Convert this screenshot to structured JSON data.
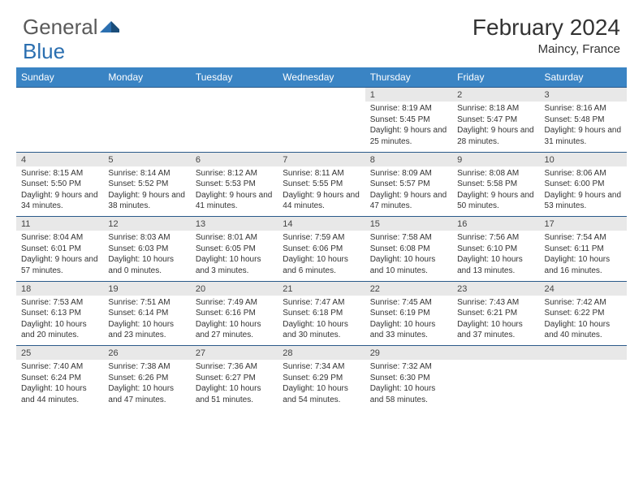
{
  "logo": {
    "text1": "General",
    "text2": "Blue"
  },
  "title": "February 2024",
  "location": "Maincy, France",
  "header_bg": "#3a84c4",
  "border_color": "#2b5a8a",
  "daynum_bg": "#e8e8e8",
  "days": [
    "Sunday",
    "Monday",
    "Tuesday",
    "Wednesday",
    "Thursday",
    "Friday",
    "Saturday"
  ],
  "weeks": [
    [
      null,
      null,
      null,
      null,
      {
        "n": "1",
        "sr": "8:19 AM",
        "ss": "5:45 PM",
        "dl": "9 hours and 25 minutes."
      },
      {
        "n": "2",
        "sr": "8:18 AM",
        "ss": "5:47 PM",
        "dl": "9 hours and 28 minutes."
      },
      {
        "n": "3",
        "sr": "8:16 AM",
        "ss": "5:48 PM",
        "dl": "9 hours and 31 minutes."
      }
    ],
    [
      {
        "n": "4",
        "sr": "8:15 AM",
        "ss": "5:50 PM",
        "dl": "9 hours and 34 minutes."
      },
      {
        "n": "5",
        "sr": "8:14 AM",
        "ss": "5:52 PM",
        "dl": "9 hours and 38 minutes."
      },
      {
        "n": "6",
        "sr": "8:12 AM",
        "ss": "5:53 PM",
        "dl": "9 hours and 41 minutes."
      },
      {
        "n": "7",
        "sr": "8:11 AM",
        "ss": "5:55 PM",
        "dl": "9 hours and 44 minutes."
      },
      {
        "n": "8",
        "sr": "8:09 AM",
        "ss": "5:57 PM",
        "dl": "9 hours and 47 minutes."
      },
      {
        "n": "9",
        "sr": "8:08 AM",
        "ss": "5:58 PM",
        "dl": "9 hours and 50 minutes."
      },
      {
        "n": "10",
        "sr": "8:06 AM",
        "ss": "6:00 PM",
        "dl": "9 hours and 53 minutes."
      }
    ],
    [
      {
        "n": "11",
        "sr": "8:04 AM",
        "ss": "6:01 PM",
        "dl": "9 hours and 57 minutes."
      },
      {
        "n": "12",
        "sr": "8:03 AM",
        "ss": "6:03 PM",
        "dl": "10 hours and 0 minutes."
      },
      {
        "n": "13",
        "sr": "8:01 AM",
        "ss": "6:05 PM",
        "dl": "10 hours and 3 minutes."
      },
      {
        "n": "14",
        "sr": "7:59 AM",
        "ss": "6:06 PM",
        "dl": "10 hours and 6 minutes."
      },
      {
        "n": "15",
        "sr": "7:58 AM",
        "ss": "6:08 PM",
        "dl": "10 hours and 10 minutes."
      },
      {
        "n": "16",
        "sr": "7:56 AM",
        "ss": "6:10 PM",
        "dl": "10 hours and 13 minutes."
      },
      {
        "n": "17",
        "sr": "7:54 AM",
        "ss": "6:11 PM",
        "dl": "10 hours and 16 minutes."
      }
    ],
    [
      {
        "n": "18",
        "sr": "7:53 AM",
        "ss": "6:13 PM",
        "dl": "10 hours and 20 minutes."
      },
      {
        "n": "19",
        "sr": "7:51 AM",
        "ss": "6:14 PM",
        "dl": "10 hours and 23 minutes."
      },
      {
        "n": "20",
        "sr": "7:49 AM",
        "ss": "6:16 PM",
        "dl": "10 hours and 27 minutes."
      },
      {
        "n": "21",
        "sr": "7:47 AM",
        "ss": "6:18 PM",
        "dl": "10 hours and 30 minutes."
      },
      {
        "n": "22",
        "sr": "7:45 AM",
        "ss": "6:19 PM",
        "dl": "10 hours and 33 minutes."
      },
      {
        "n": "23",
        "sr": "7:43 AM",
        "ss": "6:21 PM",
        "dl": "10 hours and 37 minutes."
      },
      {
        "n": "24",
        "sr": "7:42 AM",
        "ss": "6:22 PM",
        "dl": "10 hours and 40 minutes."
      }
    ],
    [
      {
        "n": "25",
        "sr": "7:40 AM",
        "ss": "6:24 PM",
        "dl": "10 hours and 44 minutes."
      },
      {
        "n": "26",
        "sr": "7:38 AM",
        "ss": "6:26 PM",
        "dl": "10 hours and 47 minutes."
      },
      {
        "n": "27",
        "sr": "7:36 AM",
        "ss": "6:27 PM",
        "dl": "10 hours and 51 minutes."
      },
      {
        "n": "28",
        "sr": "7:34 AM",
        "ss": "6:29 PM",
        "dl": "10 hours and 54 minutes."
      },
      {
        "n": "29",
        "sr": "7:32 AM",
        "ss": "6:30 PM",
        "dl": "10 hours and 58 minutes."
      },
      null,
      null
    ]
  ],
  "labels": {
    "sunrise": "Sunrise:",
    "sunset": "Sunset:",
    "daylight": "Daylight:"
  }
}
